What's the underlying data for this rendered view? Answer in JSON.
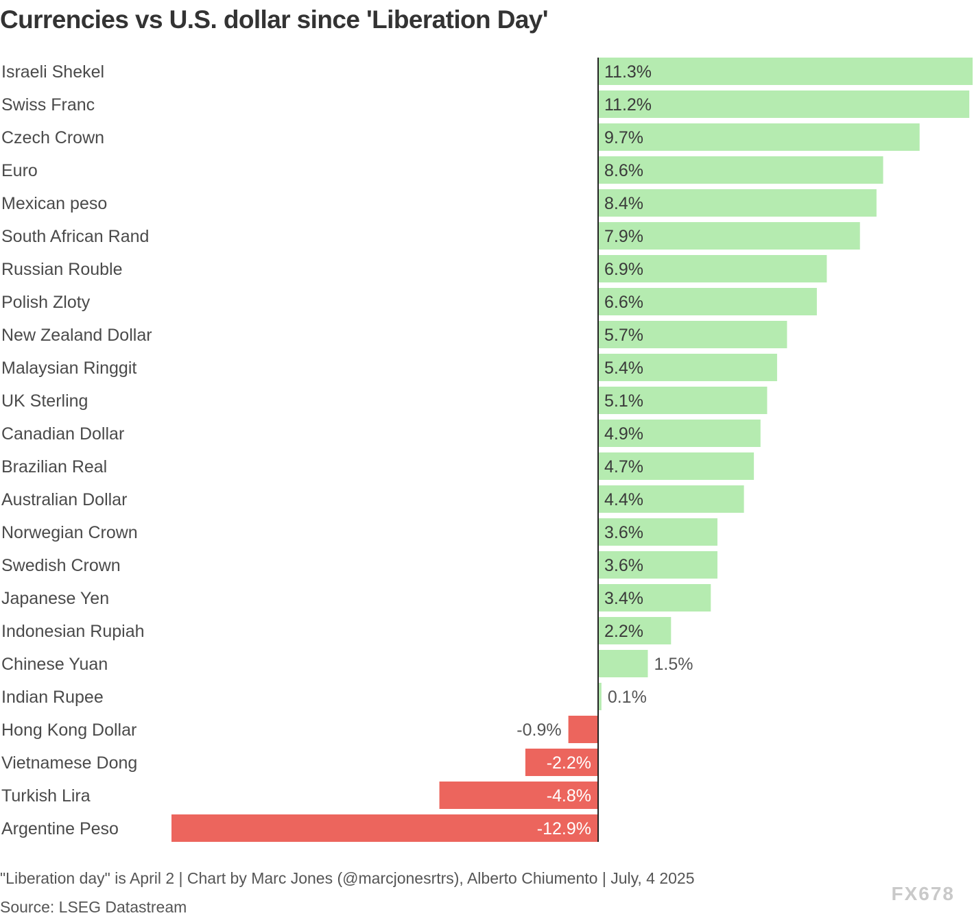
{
  "title": "Currencies vs U.S. dollar since 'Liberation Day'",
  "footnote": "\"Liberation day\" is April 2 | Chart by Marc Jones (@marcjonesrtrs), Alberto Chiumento | July, 4 2025",
  "source": "Source: LSEG Datastream",
  "watermark": "FX678",
  "colors": {
    "positive": "#b5ebb0",
    "negative": "#ec655d",
    "axis": "#222222",
    "label_dark": "#3a3a3a",
    "label_on_negative": "#ffffff",
    "label_outside": "#555555"
  },
  "chart_data": {
    "type": "bar",
    "orientation": "horizontal",
    "categories": [
      "Israeli Shekel",
      "Swiss Franc",
      "Czech Crown",
      "Euro",
      "Mexican peso",
      "South African Rand",
      "Russian Rouble",
      "Polish Zloty",
      "New Zealand Dollar",
      "Malaysian Ringgit",
      "UK Sterling",
      "Canadian Dollar",
      "Brazilian Real",
      "Australian Dollar",
      "Norwegian Crown",
      "Swedish Crown",
      "Japanese Yen",
      "Indonesian Rupiah",
      "Chinese Yuan",
      "Indian Rupee",
      "Hong Kong Dollar",
      "Vietnamese Dong",
      "Turkish Lira",
      "Argentine Peso"
    ],
    "values": [
      11.3,
      11.2,
      9.7,
      8.6,
      8.4,
      7.9,
      6.9,
      6.6,
      5.7,
      5.4,
      5.1,
      4.9,
      4.7,
      4.4,
      3.6,
      3.6,
      3.4,
      2.2,
      1.5,
      0.1,
      -0.9,
      -2.2,
      -4.8,
      -12.9
    ],
    "labels": [
      "11.3%",
      "11.2%",
      "9.7%",
      "8.6%",
      "8.4%",
      "7.9%",
      "6.9%",
      "6.6%",
      "5.7%",
      "5.4%",
      "5.1%",
      "4.9%",
      "4.7%",
      "4.4%",
      "3.6%",
      "3.6%",
      "3.4%",
      "2.2%",
      "1.5%",
      "0.1%",
      "-0.9%",
      "-2.2%",
      "-4.8%",
      "-12.9%"
    ],
    "xlim": [
      -12.9,
      11.3
    ],
    "unit": "%",
    "title": "Currencies vs U.S. dollar since 'Liberation Day'",
    "xlabel": "",
    "ylabel": ""
  }
}
